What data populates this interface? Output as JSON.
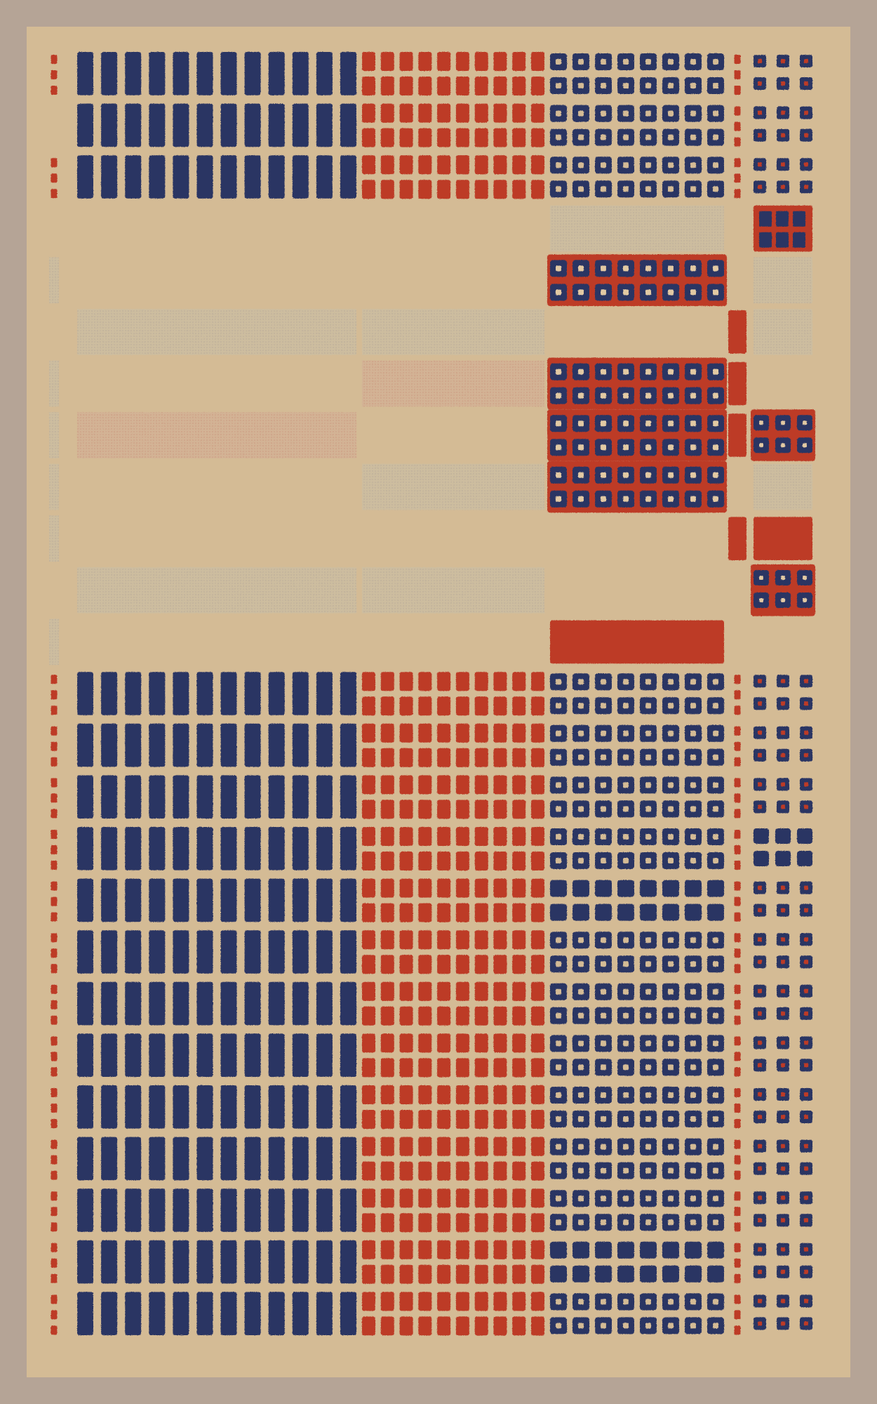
{
  "palette": {
    "frame": "#b5a496",
    "paper": "#d4bb95",
    "blue": "#2b3463",
    "red": "#bd3b28",
    "faint_gray": "#c6b8a0",
    "faint_red": "#d2ae92"
  },
  "grid": {
    "row_count": 25,
    "columns": [
      "edge-marks",
      "blue-bars",
      "red-tiles",
      "blue-rings",
      "red-marks",
      "small-tiles"
    ]
  },
  "rows": [
    {
      "lm": "dots",
      "a": "bars",
      "b": "tiles",
      "c": "rings",
      "d": "dots",
      "e": "dots"
    },
    {
      "lm": "none",
      "a": "bars",
      "b": "tiles",
      "c": "rings",
      "d": "dots",
      "e": "dots"
    },
    {
      "lm": "dots",
      "a": "bars",
      "b": "tiles",
      "c": "rings",
      "d": "dots",
      "e": "dots"
    },
    {
      "lm": "none",
      "a": "empty",
      "b": "empty",
      "c": "faint",
      "d": "none",
      "e": "redtile"
    },
    {
      "lm": "faint",
      "a": "empty",
      "b": "empty",
      "c": "redrings",
      "d": "none",
      "e": "faint"
    },
    {
      "lm": "none",
      "a": "faint",
      "b": "faint",
      "c": "empty",
      "d": "bar",
      "e": "faint"
    },
    {
      "lm": "faint",
      "a": "empty",
      "b": "faintred",
      "c": "redrings",
      "d": "bar",
      "e": "empty"
    },
    {
      "lm": "faint",
      "a": "faintred",
      "b": "empty",
      "c": "redrings",
      "d": "bar",
      "e": "redrings"
    },
    {
      "lm": "faint",
      "a": "empty",
      "b": "faint",
      "c": "redrings",
      "d": "none",
      "e": "faint"
    },
    {
      "lm": "faint",
      "a": "empty",
      "b": "empty",
      "c": "empty",
      "d": "bar",
      "e": "solid"
    },
    {
      "lm": "none",
      "a": "faint",
      "b": "faint",
      "c": "empty",
      "d": "none",
      "e": "redrings"
    },
    {
      "lm": "faint",
      "a": "empty",
      "b": "empty",
      "c": "solid",
      "d": "none",
      "e": "empty"
    },
    {
      "lm": "dots",
      "a": "bars",
      "b": "tiles",
      "c": "rings",
      "d": "dots",
      "e": "dots"
    },
    {
      "lm": "dots",
      "a": "bars",
      "b": "tiles",
      "c": "rings",
      "d": "dots",
      "e": "dots"
    },
    {
      "lm": "dots",
      "a": "bars",
      "b": "tiles",
      "c": "rings",
      "d": "dots",
      "e": "dots"
    },
    {
      "lm": "dots",
      "a": "bars",
      "b": "tiles",
      "c": "rings",
      "d": "dots",
      "e": "filled"
    },
    {
      "lm": "dots",
      "a": "bars",
      "b": "tiles",
      "c": "filled",
      "d": "dots",
      "e": "dots"
    },
    {
      "lm": "dots",
      "a": "bars",
      "b": "tiles",
      "c": "rings",
      "d": "dots",
      "e": "dots"
    },
    {
      "lm": "dots",
      "a": "bars",
      "b": "tiles",
      "c": "rings",
      "d": "dots",
      "e": "dots"
    },
    {
      "lm": "dots",
      "a": "bars",
      "b": "tiles",
      "c": "rings",
      "d": "dots",
      "e": "dots"
    },
    {
      "lm": "dots",
      "a": "bars",
      "b": "tiles",
      "c": "rings",
      "d": "dots",
      "e": "dots"
    },
    {
      "lm": "dots",
      "a": "bars",
      "b": "tiles",
      "c": "rings",
      "d": "dots",
      "e": "dots"
    },
    {
      "lm": "dots",
      "a": "bars",
      "b": "tiles",
      "c": "rings",
      "d": "dots",
      "e": "dots"
    },
    {
      "lm": "dots",
      "a": "bars",
      "b": "tiles",
      "c": "filled",
      "d": "dots",
      "e": "dots"
    },
    {
      "lm": "dots",
      "a": "bars",
      "b": "tiles",
      "c": "rings",
      "d": "dots",
      "e": "dots"
    }
  ]
}
